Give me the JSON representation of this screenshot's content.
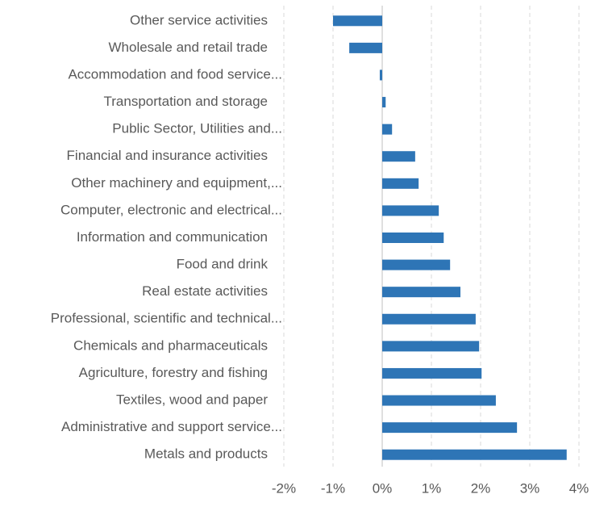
{
  "chart_data": {
    "type": "hbar",
    "categories": [
      "Other service activities",
      "Wholesale and retail trade",
      "Accommodation and food service...",
      "Transportation and storage",
      "Public Sector, Utilities and...",
      "Financial and insurance activities",
      "Other machinery and equipment,...",
      "Computer, electronic and electrical...",
      "Information and communication",
      "Food and drink",
      "Real estate activities",
      "Professional, scientific and technical...",
      "Chemicals and pharmaceuticals",
      "Agriculture, forestry and fishing",
      "Textiles, wood and paper",
      "Administrative and support service...",
      "Metals and products"
    ],
    "values": [
      -1.0,
      -0.67,
      -0.05,
      0.07,
      0.2,
      0.67,
      0.74,
      1.15,
      1.25,
      1.38,
      1.59,
      1.9,
      1.97,
      2.02,
      2.31,
      2.74,
      3.75
    ],
    "color": "#2e75b6",
    "xlim": [
      -2,
      4
    ],
    "xticks": [
      {
        "value": -2,
        "label": "-2%"
      },
      {
        "value": -1,
        "label": "-1%"
      },
      {
        "value": 0,
        "label": "0%"
      },
      {
        "value": 1,
        "label": "1%"
      },
      {
        "value": 2,
        "label": "2%"
      },
      {
        "value": 3,
        "label": "3%"
      },
      {
        "value": 4,
        "label": "4%"
      }
    ],
    "grid": true
  }
}
